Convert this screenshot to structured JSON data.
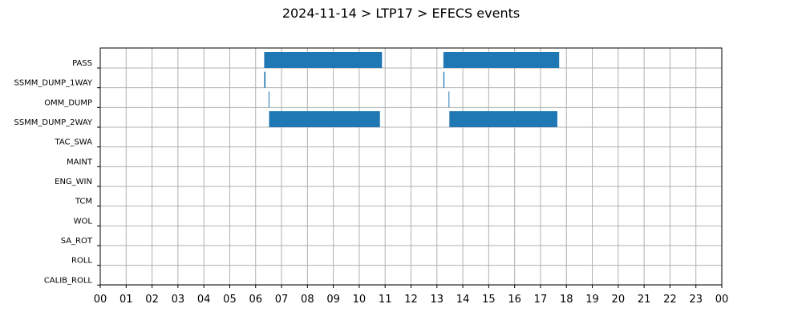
{
  "chart_data": {
    "type": "bar",
    "orientation": "horizontal-timeline",
    "title": "2024-11-14 > LTP17 > EFECS events",
    "xlabel": "",
    "ylabel": "",
    "xlim": [
      0,
      24
    ],
    "x_unit": "hour",
    "x_tick_labels": [
      "00",
      "01",
      "02",
      "03",
      "04",
      "05",
      "06",
      "07",
      "08",
      "09",
      "10",
      "11",
      "12",
      "13",
      "14",
      "15",
      "16",
      "17",
      "18",
      "19",
      "20",
      "21",
      "22",
      "23",
      "00"
    ],
    "grid": true,
    "bar_color": "#1f77b4",
    "categories": [
      "PASS",
      "SSMM_DUMP_1WAY",
      "OMM_DUMP",
      "SSMM_DUMP_2WAY",
      "TAC_SWA",
      "MAINT",
      "ENG_WIN",
      "TCM",
      "WOL",
      "SA_ROT",
      "ROLL",
      "CALIB_ROLL"
    ],
    "events": [
      {
        "category": "PASS",
        "start": 6.33,
        "end": 10.88
      },
      {
        "category": "PASS",
        "start": 13.25,
        "end": 17.72
      },
      {
        "category": "SSMM_DUMP_1WAY",
        "start": 6.33,
        "end": 6.38
      },
      {
        "category": "SSMM_DUMP_1WAY",
        "start": 13.25,
        "end": 13.29
      },
      {
        "category": "OMM_DUMP",
        "start": 6.5,
        "end": 6.53
      },
      {
        "category": "OMM_DUMP",
        "start": 13.45,
        "end": 13.48
      },
      {
        "category": "SSMM_DUMP_2WAY",
        "start": 6.52,
        "end": 10.8
      },
      {
        "category": "SSMM_DUMP_2WAY",
        "start": 13.48,
        "end": 17.65
      }
    ]
  }
}
